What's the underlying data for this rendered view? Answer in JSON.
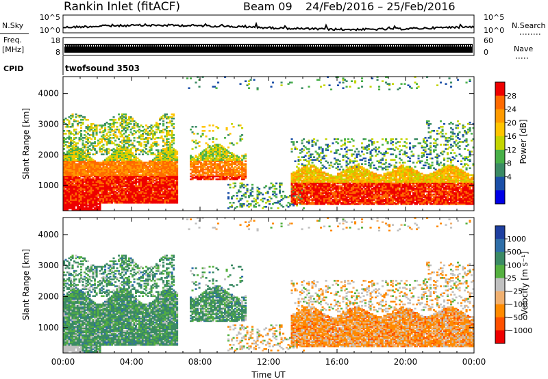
{
  "header": {
    "station": "Rankin Inlet (fitACF)",
    "beam": "Beam 09",
    "date_range": "24/Feb/2016 – 25/Feb/2016"
  },
  "nsky_panel": {
    "left_label": "N.Sky",
    "left_ticks": [
      "10^5",
      "10^0"
    ],
    "right_ticks": [
      "10^5",
      "10^0"
    ],
    "right_label": "N.Search"
  },
  "freq_panel": {
    "left_label_line1": "Freq.",
    "left_label_line2": "[MHz]",
    "left_ticks": [
      "18",
      "8"
    ],
    "right_ticks": [
      "60",
      "0"
    ],
    "right_label": "Nave"
  },
  "cpid_panel": {
    "label": "CPID",
    "value": "twofsound 3503"
  },
  "chart_data": [
    {
      "type": "heatmap",
      "name": "power",
      "ylabel": "Slant Range [km]",
      "ylim": [
        180,
        4550
      ],
      "yticks": [
        1000,
        2000,
        3000,
        4000
      ],
      "xlim": [
        0,
        24
      ],
      "colorbar_label": "Power [dB]",
      "colorbar_ticks": [
        "28",
        "24",
        "20",
        "16",
        "12",
        "8",
        "4"
      ],
      "colorbar_colors": [
        "#ee0000",
        "#ff6a00",
        "#ff9a00",
        "#ffc400",
        "#c4d400",
        "#48b048",
        "#3b8a64",
        "#1b4fa8",
        "#0000e6"
      ]
    },
    {
      "type": "heatmap",
      "name": "velocity",
      "ylabel": "Slant Range [km]",
      "ylim": [
        180,
        4550
      ],
      "yticks": [
        1000,
        2000,
        3000,
        4000
      ],
      "xlim": [
        0,
        24
      ],
      "xlabel": "Time UT",
      "xticks": [
        "00:00",
        "04:00",
        "08:00",
        "12:00",
        "16:00",
        "20:00",
        "00:00"
      ],
      "colorbar_label": "Velocity [m s⁻¹]",
      "colorbar_ticks": [
        "1000",
        "500",
        "100",
        "25",
        "−25",
        "−100",
        "−500",
        "−1000"
      ],
      "colorbar_colors": [
        "#1e3fa0",
        "#2e6ea8",
        "#3b8a64",
        "#55b040",
        "#c0c0c0",
        "#f0b070",
        "#ff8a00",
        "#ff5000",
        "#ee0000"
      ]
    }
  ]
}
